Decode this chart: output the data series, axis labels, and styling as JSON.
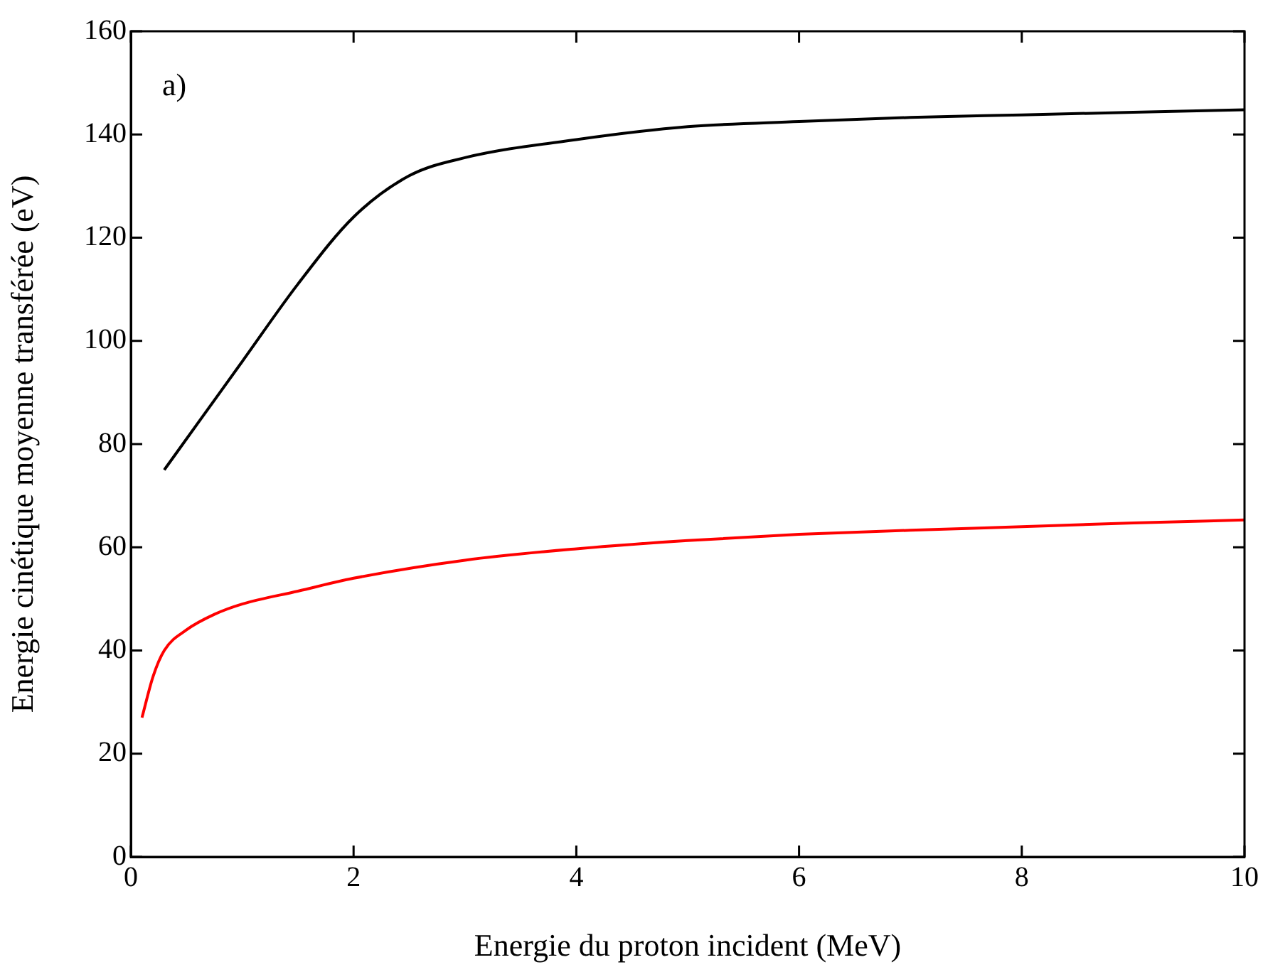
{
  "chart_data": {
    "type": "line",
    "xlabel": "Energie du proton incident (MeV)",
    "ylabel": "Energie cinétique moyenne transférée (eV)",
    "annotations": [
      "a)"
    ],
    "xlim": [
      0,
      10
    ],
    "xticks": [
      0,
      2,
      4,
      6,
      8,
      10
    ],
    "ylim": [
      0,
      160
    ],
    "yticks": [
      0,
      20,
      40,
      60,
      80,
      100,
      120,
      140,
      160
    ],
    "grid": false,
    "legend": false,
    "marker": "none",
    "line_style": "solid",
    "series": [
      {
        "color": "#000000",
        "x": [
          0.3,
          0.6,
          1,
          1.5,
          2,
          2.5,
          3,
          4,
          5,
          6,
          7,
          8,
          9,
          10
        ],
        "values": [
          75,
          84,
          96,
          111,
          124,
          132,
          135.5,
          139,
          141.5,
          142.5,
          143.3,
          143.8,
          144.3,
          144.8
        ]
      },
      {
        "color": "#ff0000",
        "x": [
          0.1,
          0.2,
          0.3,
          0.5,
          0.75,
          1,
          1.5,
          2,
          3,
          4,
          5,
          6,
          7,
          8,
          9,
          10
        ],
        "values": [
          27,
          35,
          40,
          44,
          47,
          49,
          51.5,
          54,
          57.5,
          59.7,
          61.3,
          62.5,
          63.3,
          64,
          64.7,
          65.3
        ]
      }
    ]
  }
}
